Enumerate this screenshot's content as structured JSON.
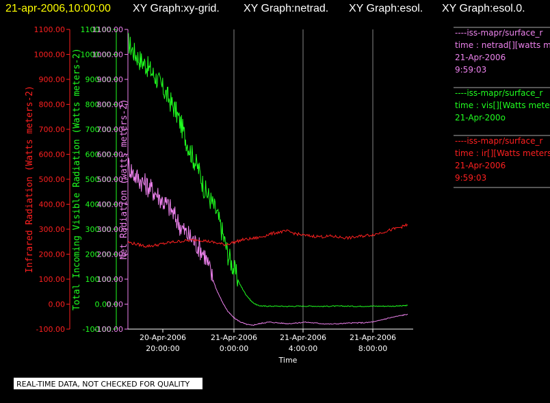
{
  "header": {
    "title_time": "21-apr-2006,10:00:00",
    "graphs": [
      "XY Graph:xy-grid.",
      "XY Graph:netrad.",
      "XY Graph:esol.",
      "XY Graph:esol.0."
    ]
  },
  "disclaimer": "REAL-TIME DATA, NOT CHECKED FOR QUALITY",
  "chart_data": {
    "type": "line",
    "xlabel": "Time",
    "x_ticks": [
      {
        "date": "20-Apr-2006",
        "time": "20:00:00"
      },
      {
        "date": "21-Apr-2006",
        "time": "0:00:00"
      },
      {
        "date": "21-Apr-2006",
        "time": "4:00:00"
      },
      {
        "date": "21-Apr-2006",
        "time": "8:00:00"
      }
    ],
    "x_range": [
      "20-Apr-2006 18:10",
      "21-Apr-2006 10:00"
    ],
    "grid": "vertical lines at x ticks",
    "y_axes": [
      {
        "name": "ir",
        "label": "Infrared Radiation (Watts meters-2)",
        "color": "#ff2020",
        "ylim": [
          -100,
          1100
        ],
        "ticks": [
          "1100.00",
          "1000.00",
          "900.00",
          "800.00",
          "700.00",
          "600.00",
          "500.00",
          "400.00",
          "300.00",
          "200.00",
          "100.00",
          "0.00",
          "-100.00"
        ]
      },
      {
        "name": "vis",
        "label": "Total Incoming Visible Radiation (Watts meters-2)",
        "color": "#20ff20",
        "ylim": [
          -100,
          1100
        ],
        "ticks": [
          "1100.00",
          "1000.00",
          "900.00",
          "800.00",
          "700.00",
          "600.00",
          "500.00",
          "400.00",
          "300.00",
          "200.00",
          "100.00",
          "0.00",
          "-100.00"
        ]
      },
      {
        "name": "netrad",
        "label": "Net Radiation (watts meters-2)",
        "color": "#ee82ee",
        "ylim": [
          -100,
          1100
        ],
        "ticks": [
          "1100.00",
          "1000.00",
          "900.00",
          "800.00",
          "700.00",
          "600.00",
          "500.00",
          "400.00",
          "300.00",
          "200.00",
          "100.00",
          "0.00",
          "-100.00"
        ]
      }
    ],
    "series": [
      {
        "name": "vis",
        "color": "#20ff20",
        "x_hours": [
          0,
          0.33,
          0.66,
          1,
          1.33,
          1.66,
          2,
          2.33,
          2.66,
          3,
          3.33,
          3.66,
          4,
          4.33,
          4.66,
          5,
          5.33,
          5.66,
          6,
          6.33,
          6.66,
          7,
          7.33,
          7.66,
          8,
          8.5,
          9,
          9.5,
          10,
          10.5,
          11,
          11.5,
          12,
          12.5,
          13,
          13.5,
          14,
          14.5,
          15,
          15.5,
          15.83
        ],
        "values": [
          1050,
          1010,
          980,
          960,
          930,
          900,
          860,
          820,
          780,
          720,
          650,
          590,
          540,
          460,
          420,
          370,
          290,
          200,
          140,
          80,
          40,
          10,
          -5,
          -8,
          -8,
          -8,
          -9,
          -8,
          -8,
          -8,
          -9,
          -8,
          -8,
          -8,
          -9,
          -8,
          -8,
          -8,
          -8,
          -7,
          -5
        ]
      },
      {
        "name": "netrad",
        "color": "#ee82ee",
        "x_hours": [
          0,
          0.33,
          0.66,
          1,
          1.33,
          1.66,
          2,
          2.33,
          2.66,
          3,
          3.33,
          3.66,
          4,
          4.33,
          4.66,
          5,
          5.33,
          5.66,
          6,
          6.33,
          6.66,
          7,
          7.33,
          7.66,
          8,
          8.5,
          9,
          9.5,
          10,
          10.5,
          11,
          11.5,
          12,
          12.5,
          13,
          13.5,
          14,
          14.5,
          15,
          15.5,
          15.83
        ],
        "values": [
          560,
          520,
          500,
          480,
          460,
          440,
          410,
          390,
          350,
          310,
          280,
          260,
          230,
          200,
          130,
          60,
          10,
          -30,
          -55,
          -70,
          -80,
          -85,
          -80,
          -75,
          -72,
          -75,
          -78,
          -76,
          -72,
          -75,
          -78,
          -80,
          -78,
          -76,
          -75,
          -74,
          -70,
          -60,
          -52,
          -45,
          -40
        ]
      },
      {
        "name": "ir",
        "color": "#ff2020",
        "x_hours": [
          0,
          0.5,
          1,
          1.5,
          2,
          2.5,
          3,
          3.5,
          4,
          4.5,
          5,
          5.5,
          6,
          6.5,
          7,
          7.5,
          8,
          8.5,
          9,
          9.5,
          10,
          10.5,
          11,
          11.5,
          12,
          12.5,
          13,
          13.5,
          14,
          14.5,
          15,
          15.5,
          15.83
        ],
        "values": [
          248,
          240,
          232,
          235,
          242,
          248,
          252,
          255,
          258,
          252,
          245,
          238,
          248,
          258,
          262,
          268,
          280,
          288,
          292,
          282,
          275,
          272,
          270,
          272,
          268,
          265,
          270,
          275,
          280,
          290,
          300,
          310,
          318
        ]
      }
    ],
    "legend": [
      {
        "lines": [
          "----iss-mapr/surface_r",
          "time : netrad[][watts m",
          "21-Apr-2006",
          "9:59:03"
        ],
        "color": "#ee82ee"
      },
      {
        "lines": [
          "----iss-mapr/surface_r",
          "time : vis[][Watts mete",
          "21-Apr-200o"
        ],
        "color": "#20ff20"
      },
      {
        "lines": [
          "----iss-mapr/surface_r",
          "time : ir[][Watts meters",
          "21-Apr-2006",
          "9:59:03"
        ],
        "color": "#ff2020"
      }
    ],
    "legend_position": "right"
  }
}
